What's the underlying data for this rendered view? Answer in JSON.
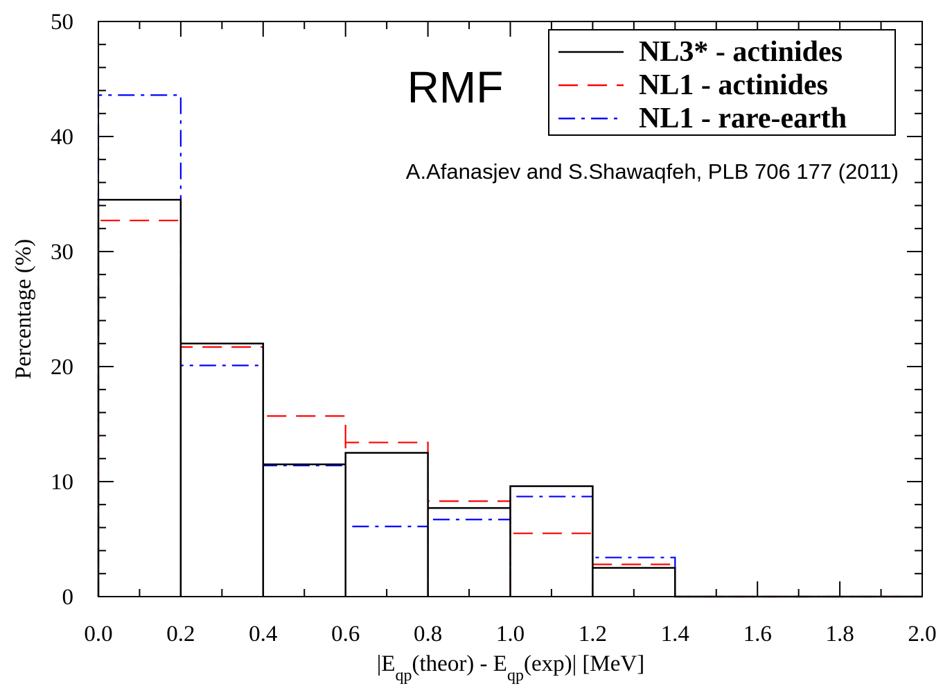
{
  "chart_data": {
    "type": "histogram",
    "annotation_title": "RMF",
    "annotation_citation": "A.Afanasjev and S.Shawaqfeh, PLB 706 177 (2011)",
    "ylabel": "Percentage (%)",
    "xlabel_parts": {
      "pre": "|E",
      "sub1": "qp",
      "mid": "(theor) - E",
      "sub2": "qp",
      "post": "(exp)| [MeV]"
    },
    "xlim": [
      0.0,
      2.0
    ],
    "ylim": [
      0,
      50
    ],
    "x_ticks": [
      "0.0",
      "0.2",
      "0.4",
      "0.6",
      "0.8",
      "1.0",
      "1.2",
      "1.4",
      "1.6",
      "1.8",
      "2.0"
    ],
    "y_ticks": [
      "0",
      "10",
      "20",
      "30",
      "40",
      "50"
    ],
    "bin_edges": [
      0.0,
      0.2,
      0.4,
      0.6,
      0.8,
      1.0,
      1.2,
      1.4,
      1.6,
      1.8,
      2.0
    ],
    "legend_position": "top-right",
    "grid": false,
    "series": [
      {
        "name": "NL3* - actinides",
        "color": "#000000",
        "style": "solid",
        "values": [
          34.5,
          22.0,
          11.5,
          12.5,
          7.7,
          9.6,
          2.5,
          0,
          0,
          0
        ]
      },
      {
        "name": "NL1 - actinides",
        "color": "#ff0000",
        "style": "dashed",
        "values": [
          32.7,
          21.7,
          15.7,
          13.4,
          8.3,
          5.5,
          2.8,
          0,
          0,
          0
        ]
      },
      {
        "name": "NL1 - rare-earth",
        "color": "#0000ff",
        "style": "dashdot",
        "values": [
          43.6,
          20.1,
          11.4,
          6.1,
          6.7,
          8.7,
          3.4,
          0,
          0,
          0
        ]
      }
    ]
  }
}
